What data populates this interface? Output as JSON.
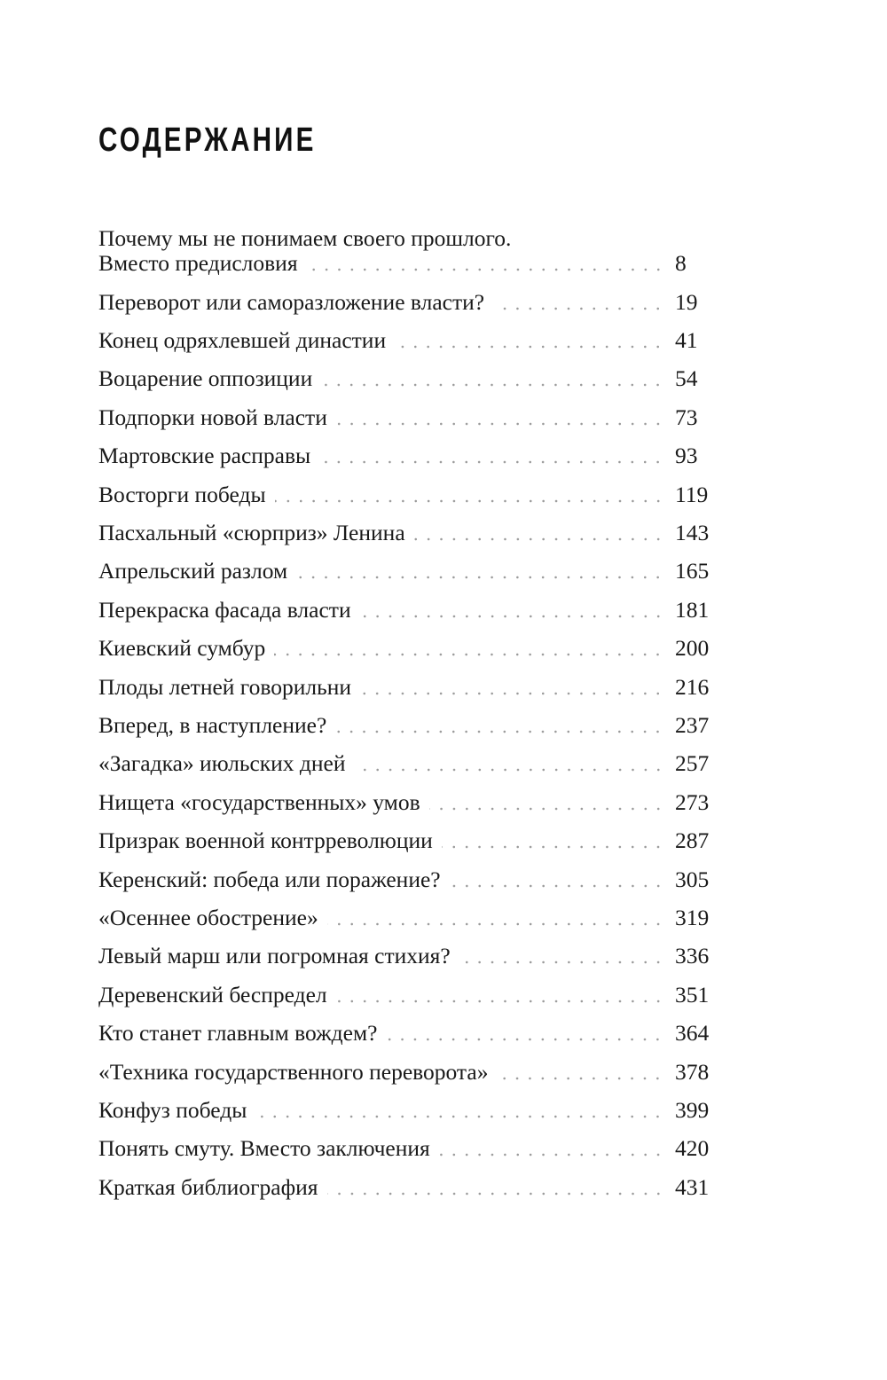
{
  "heading": "СОДЕРЖАНИЕ",
  "first_entry": {
    "line1": "Почему мы не понимаем своего прошлого.",
    "line2": "Вместо предисловия",
    "page": "8"
  },
  "entries": [
    {
      "title": "Переворот или саморазложение власти?",
      "page": "19"
    },
    {
      "title": "Конец одряхлевшей династии",
      "page": "41"
    },
    {
      "title": "Воцарение оппозиции",
      "page": "54"
    },
    {
      "title": "Подпорки новой власти",
      "page": "73"
    },
    {
      "title": "Мартовские расправы",
      "page": "93"
    },
    {
      "title": "Восторги победы",
      "page": "119"
    },
    {
      "title": "Пасхальный «сюрприз» Ленина",
      "page": "143"
    },
    {
      "title": "Апрельский разлом",
      "page": "165"
    },
    {
      "title": "Перекраска фасада власти",
      "page": "181"
    },
    {
      "title": "Киевский сумбур",
      "page": "200"
    },
    {
      "title": "Плоды летней говорильни",
      "page": "216"
    },
    {
      "title": "Вперед, в наступление?",
      "page": "237"
    },
    {
      "title": "«Загадка» июльских дней",
      "page": "257"
    },
    {
      "title": "Нищета «государственных» умов",
      "page": "273"
    },
    {
      "title": "Призрак военной контрреволюции",
      "page": "287"
    },
    {
      "title": "Керенский: победа или поражение?",
      "page": "305"
    },
    {
      "title": "«Осеннее обострение»",
      "page": "319"
    },
    {
      "title": "Левый марш или погромная стихия?",
      "page": "336"
    },
    {
      "title": "Деревенский беспредел",
      "page": "351"
    },
    {
      "title": "Кто станет главным вождем?",
      "page": "364"
    },
    {
      "title": "«Техника государственного переворота»",
      "page": "378"
    },
    {
      "title": "Конфуз победы",
      "page": "399"
    },
    {
      "title": "Понять смуту. Вместо заключения",
      "page": "420"
    },
    {
      "title": "Краткая библиография",
      "page": "431"
    }
  ]
}
